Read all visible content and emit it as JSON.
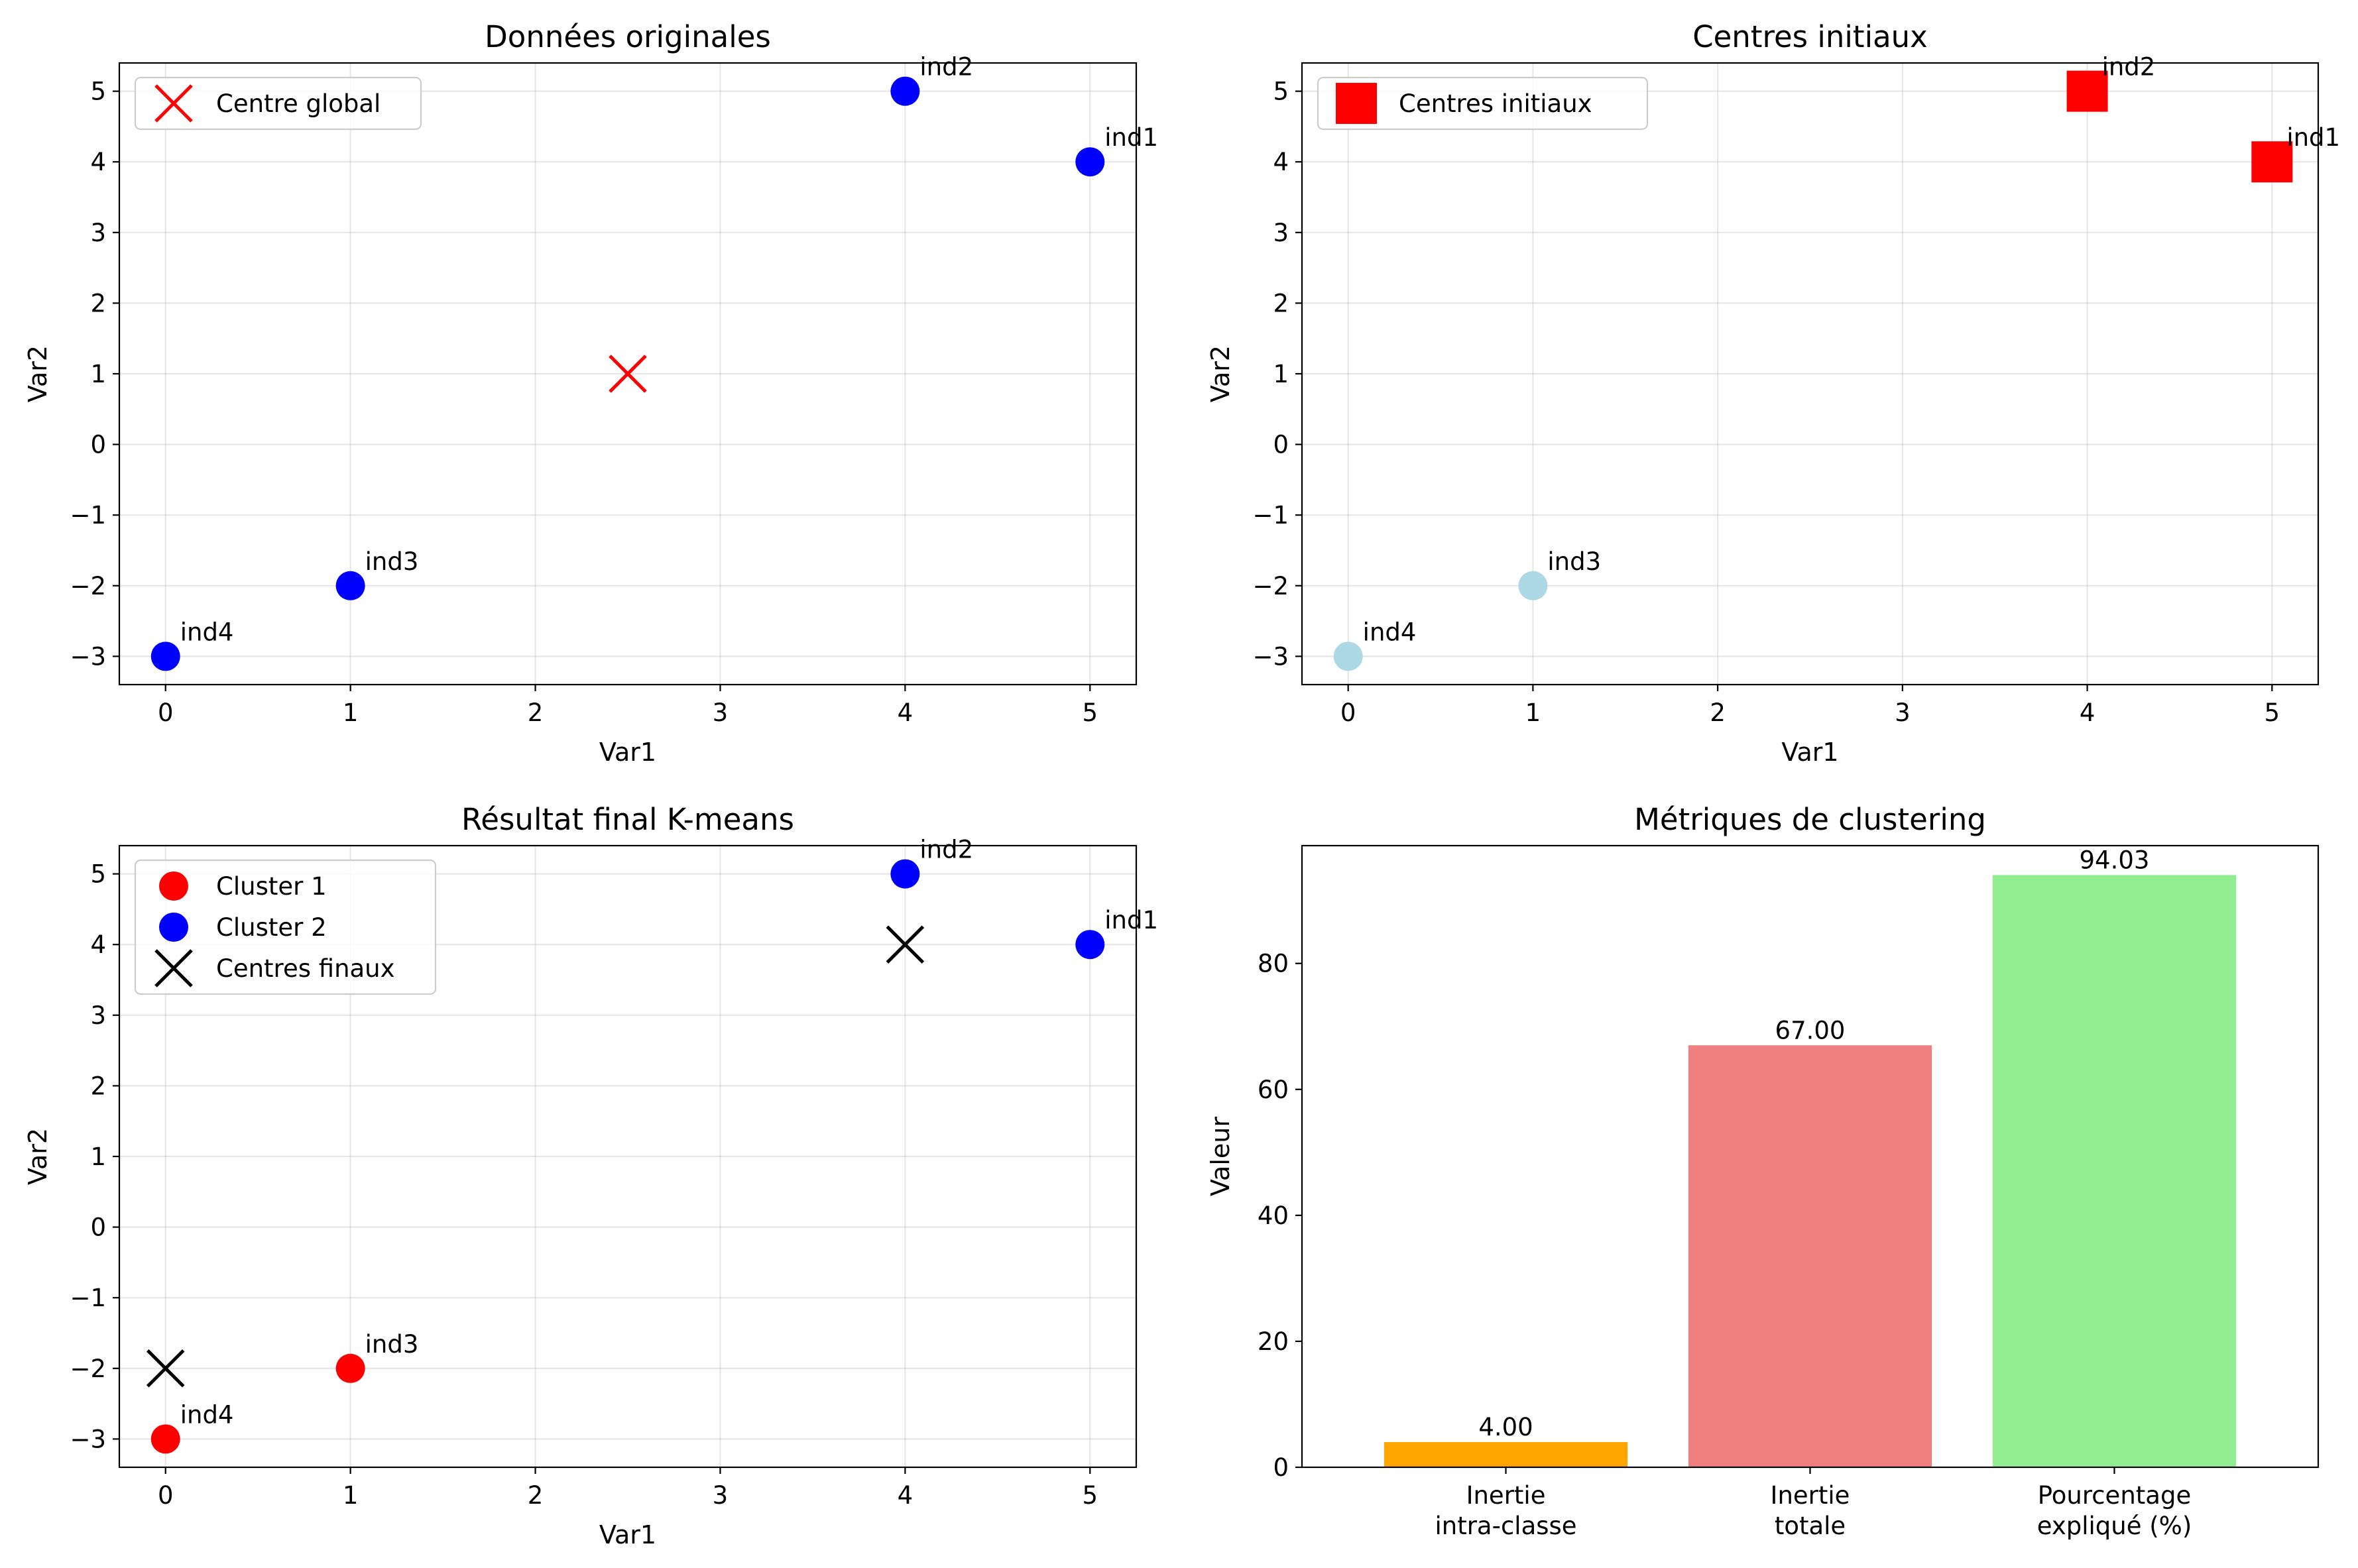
{
  "chart_data": [
    {
      "type": "scatter",
      "title": "Données originales",
      "xlabel": "Var1",
      "ylabel": "Var2",
      "xlim": [
        -0.25,
        5.25
      ],
      "ylim": [
        -3.4,
        5.4
      ],
      "xticks": [
        0,
        1,
        2,
        3,
        4,
        5
      ],
      "yticks": [
        -3,
        -2,
        -1,
        0,
        1,
        2,
        3,
        4,
        5
      ],
      "grid": true,
      "legend_position": "upper-left",
      "series": [
        {
          "name": "",
          "marker": "circle",
          "color": "#0000ff",
          "points": [
            {
              "x": 5,
              "y": 4,
              "label": "ind1"
            },
            {
              "x": 4,
              "y": 5,
              "label": "ind2"
            },
            {
              "x": 1,
              "y": -2,
              "label": "ind3"
            },
            {
              "x": 0,
              "y": -3,
              "label": "ind4"
            }
          ]
        },
        {
          "name": "Centre global",
          "marker": "x",
          "color": "#ff0000",
          "points": [
            {
              "x": 2.5,
              "y": 1,
              "label": ""
            }
          ]
        }
      ]
    },
    {
      "type": "scatter",
      "title": "Centres initiaux",
      "xlabel": "Var1",
      "ylabel": "Var2",
      "xlim": [
        -0.25,
        5.25
      ],
      "ylim": [
        -3.4,
        5.4
      ],
      "xticks": [
        0,
        1,
        2,
        3,
        4,
        5
      ],
      "yticks": [
        -3,
        -2,
        -1,
        0,
        1,
        2,
        3,
        4,
        5
      ],
      "grid": true,
      "legend_position": "upper-left",
      "series": [
        {
          "name": "",
          "marker": "circle",
          "color": "#add8e6",
          "points": [
            {
              "x": 5,
              "y": 4,
              "label": "ind1"
            },
            {
              "x": 4,
              "y": 5,
              "label": "ind2"
            },
            {
              "x": 1,
              "y": -2,
              "label": "ind3"
            },
            {
              "x": 0,
              "y": -3,
              "label": "ind4"
            }
          ]
        },
        {
          "name": "Centres initiaux",
          "marker": "square",
          "color": "#ff0000",
          "points": [
            {
              "x": 4,
              "y": 5,
              "label": ""
            },
            {
              "x": 5,
              "y": 4,
              "label": ""
            }
          ]
        }
      ]
    },
    {
      "type": "scatter",
      "title": "Résultat final K-means",
      "xlabel": "Var1",
      "ylabel": "Var2",
      "xlim": [
        -0.25,
        5.25
      ],
      "ylim": [
        -3.4,
        5.4
      ],
      "xticks": [
        0,
        1,
        2,
        3,
        4,
        5
      ],
      "yticks": [
        -3,
        -2,
        -1,
        0,
        1,
        2,
        3,
        4,
        5
      ],
      "grid": true,
      "legend_position": "upper-left",
      "series": [
        {
          "name": "Cluster 1",
          "marker": "circle",
          "color": "#ff0000",
          "points": [
            {
              "x": 1,
              "y": -2,
              "label": "ind3"
            },
            {
              "x": 0,
              "y": -3,
              "label": "ind4"
            }
          ]
        },
        {
          "name": "Cluster 2",
          "marker": "circle",
          "color": "#0000ff",
          "points": [
            {
              "x": 5,
              "y": 4,
              "label": "ind1"
            },
            {
              "x": 4,
              "y": 5,
              "label": "ind2"
            }
          ]
        },
        {
          "name": "Centres finaux",
          "marker": "x",
          "color": "#000000",
          "points": [
            {
              "x": 0,
              "y": -2,
              "label": ""
            },
            {
              "x": 4,
              "y": 4,
              "label": ""
            }
          ]
        }
      ]
    },
    {
      "type": "bar",
      "title": "Métriques de clustering",
      "xlabel": "",
      "ylabel": "Valeur",
      "ylim": [
        0,
        98.7
      ],
      "yticks": [
        0,
        20,
        40,
        60,
        80
      ],
      "grid": false,
      "categories": [
        "Inertie\nintra-classe",
        "Inertie\ntotale",
        "Pourcentage\nexpliqué (%)"
      ],
      "values": [
        4.0,
        67.0,
        94.03
      ],
      "value_labels": [
        "4.00",
        "67.00",
        "94.03"
      ],
      "colors": [
        "#ffa500",
        "#f08080",
        "#90ee90"
      ]
    }
  ]
}
